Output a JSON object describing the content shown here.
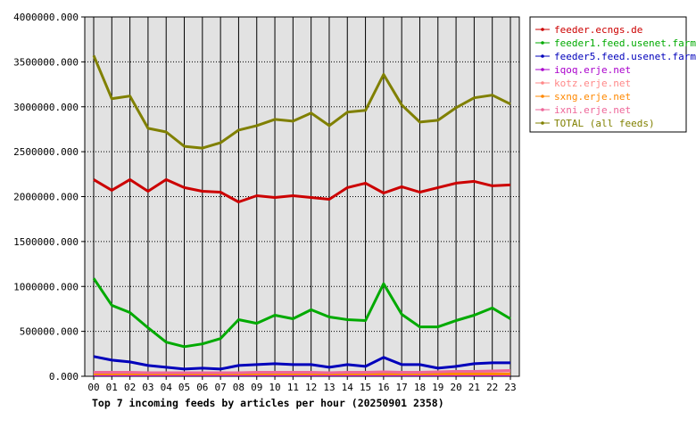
{
  "chart_data": {
    "type": "line",
    "title": "Top 7 incoming feeds by articles per hour (20250901 2358)",
    "xlabel": "",
    "ylabel": "",
    "categories": [
      "00",
      "01",
      "02",
      "03",
      "04",
      "05",
      "06",
      "07",
      "08",
      "09",
      "10",
      "11",
      "12",
      "13",
      "14",
      "15",
      "16",
      "17",
      "18",
      "19",
      "20",
      "21",
      "22",
      "23"
    ],
    "ylim": [
      0,
      4000000
    ],
    "yticks": [
      "0.000",
      "500000.000",
      "1000000.000",
      "1500000.000",
      "2000000.000",
      "2500000.000",
      "3000000.000",
      "3500000.000",
      "4000000.000"
    ],
    "grid": true,
    "legend_position": "top-right",
    "plot_background": "#e2e2e2",
    "series": [
      {
        "name": "feeder.ecngs.de",
        "color": "#cc0000",
        "values": [
          2190000,
          2070000,
          2190000,
          2060000,
          2190000,
          2100000,
          2060000,
          2050000,
          1940000,
          2010000,
          1990000,
          2010000,
          1990000,
          1970000,
          2100000,
          2150000,
          2040000,
          2110000,
          2050000,
          2100000,
          2150000,
          2170000,
          2120000,
          2130000
        ]
      },
      {
        "name": "feeder1.feed.usenet.farm",
        "color": "#00aa00",
        "values": [
          1090000,
          790000,
          710000,
          540000,
          380000,
          330000,
          360000,
          420000,
          630000,
          590000,
          680000,
          640000,
          740000,
          660000,
          630000,
          620000,
          1030000,
          690000,
          550000,
          550000,
          620000,
          680000,
          760000,
          640000
        ]
      },
      {
        "name": "feeder5.feed.usenet.farm",
        "color": "#0000bb",
        "values": [
          220000,
          180000,
          160000,
          120000,
          100000,
          80000,
          90000,
          80000,
          120000,
          130000,
          140000,
          130000,
          130000,
          100000,
          130000,
          110000,
          210000,
          130000,
          130000,
          90000,
          110000,
          140000,
          150000,
          150000
        ]
      },
      {
        "name": "iqoq.erje.net",
        "color": "#aa00cc",
        "values": [
          15000,
          15000,
          15000,
          15000,
          15000,
          15000,
          15000,
          15000,
          15000,
          15000,
          15000,
          15000,
          15000,
          15000,
          15000,
          15000,
          15000,
          15000,
          15000,
          15000,
          15000,
          15000,
          15000,
          15000
        ]
      },
      {
        "name": "kotz.erje.net",
        "color": "#ff8888",
        "values": [
          30000,
          30000,
          30000,
          30000,
          30000,
          30000,
          30000,
          30000,
          30000,
          30000,
          30000,
          30000,
          30000,
          30000,
          30000,
          30000,
          30000,
          30000,
          30000,
          30000,
          30000,
          30000,
          30000,
          30000
        ]
      },
      {
        "name": "sxng.erje.net",
        "color": "#ff8800",
        "values": [
          25000,
          25000,
          25000,
          25000,
          25000,
          25000,
          25000,
          25000,
          25000,
          25000,
          25000,
          25000,
          25000,
          25000,
          25000,
          25000,
          25000,
          25000,
          25000,
          25000,
          25000,
          25000,
          25000,
          25000
        ]
      },
      {
        "name": "ixni.erje.net",
        "color": "#ee6699",
        "values": [
          45000,
          45000,
          45000,
          40000,
          40000,
          40000,
          40000,
          40000,
          40000,
          45000,
          45000,
          45000,
          45000,
          40000,
          45000,
          45000,
          50000,
          45000,
          45000,
          50000,
          55000,
          55000,
          60000,
          65000
        ]
      },
      {
        "name": "TOTAL (all feeds)",
        "color": "#808000",
        "values": [
          3570000,
          3090000,
          3120000,
          2760000,
          2720000,
          2560000,
          2540000,
          2600000,
          2740000,
          2790000,
          2860000,
          2840000,
          2930000,
          2790000,
          2940000,
          2960000,
          3360000,
          3020000,
          2830000,
          2850000,
          2990000,
          3100000,
          3130000,
          3030000
        ]
      }
    ]
  }
}
